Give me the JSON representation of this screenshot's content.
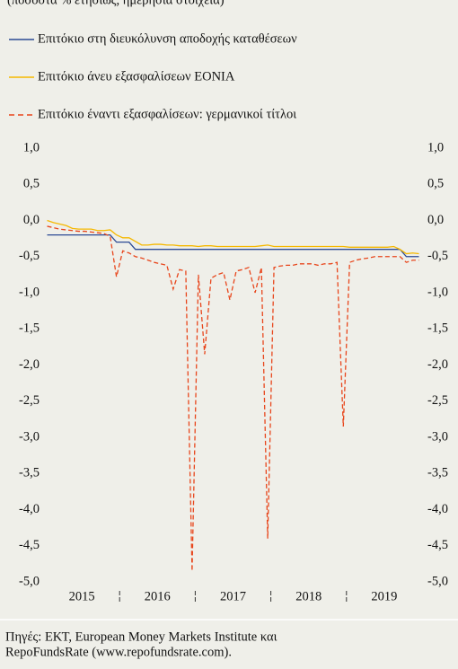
{
  "chart_data": {
    "type": "line",
    "subtitle": "(ποσοστά % ετησίως, ημερήσια στοιχεία)",
    "categories": [
      null,
      null,
      null,
      null,
      null,
      "2015",
      null,
      null,
      null,
      null,
      null,
      null,
      null,
      null,
      null,
      null,
      null,
      "2016",
      null,
      null,
      null,
      null,
      null,
      null,
      null,
      null,
      null,
      null,
      null,
      "2017",
      null,
      null,
      null,
      null,
      null,
      null,
      null,
      null,
      null,
      null,
      null,
      "2018",
      null,
      null,
      null,
      null,
      null,
      null,
      null,
      null,
      null,
      null,
      null,
      "2019",
      null,
      null,
      null,
      null,
      null,
      null
    ],
    "series": [
      {
        "name": "Επιτόκιο στη διευκόλυνση αποδοχής καταθέσεων",
        "color": "#2c4a94",
        "dashed": false,
        "values": [
          -0.2,
          -0.2,
          -0.2,
          -0.2,
          -0.2,
          -0.2,
          -0.2,
          -0.2,
          -0.2,
          -0.2,
          -0.2,
          -0.3,
          -0.3,
          -0.3,
          -0.4,
          -0.4,
          -0.4,
          -0.4,
          -0.4,
          -0.4,
          -0.4,
          -0.4,
          -0.4,
          -0.4,
          -0.4,
          -0.4,
          -0.4,
          -0.4,
          -0.4,
          -0.4,
          -0.4,
          -0.4,
          -0.4,
          -0.4,
          -0.4,
          -0.4,
          -0.4,
          -0.4,
          -0.4,
          -0.4,
          -0.4,
          -0.4,
          -0.4,
          -0.4,
          -0.4,
          -0.4,
          -0.4,
          -0.4,
          -0.4,
          -0.4,
          -0.4,
          -0.4,
          -0.4,
          -0.4,
          -0.4,
          -0.4,
          -0.4,
          -0.5,
          -0.5,
          -0.5
        ]
      },
      {
        "name": "Επιτόκιο άνευ εξασφαλίσεων EONIA",
        "color": "#f5b800",
        "dashed": false,
        "values": [
          0.0,
          -0.03,
          -0.05,
          -0.07,
          -0.11,
          -0.12,
          -0.12,
          -0.12,
          -0.14,
          -0.14,
          -0.13,
          -0.2,
          -0.24,
          -0.24,
          -0.29,
          -0.34,
          -0.34,
          -0.33,
          -0.33,
          -0.34,
          -0.34,
          -0.35,
          -0.35,
          -0.35,
          -0.36,
          -0.35,
          -0.35,
          -0.36,
          -0.36,
          -0.36,
          -0.36,
          -0.36,
          -0.36,
          -0.36,
          -0.35,
          -0.34,
          -0.36,
          -0.36,
          -0.36,
          -0.36,
          -0.36,
          -0.36,
          -0.36,
          -0.36,
          -0.36,
          -0.36,
          -0.36,
          -0.36,
          -0.37,
          -0.37,
          -0.37,
          -0.37,
          -0.37,
          -0.37,
          -0.37,
          -0.36,
          -0.4,
          -0.46,
          -0.45,
          -0.46
        ]
      },
      {
        "name": "Επιτόκιο έναντι εξασφαλίσεων: γερμανικοί τίτλοι",
        "color": "#e8461c",
        "dashed": true,
        "values": [
          -0.08,
          -0.1,
          -0.12,
          -0.13,
          -0.14,
          -0.15,
          -0.15,
          -0.16,
          -0.17,
          -0.18,
          -0.22,
          -0.78,
          -0.42,
          -0.45,
          -0.5,
          -0.52,
          -0.55,
          -0.58,
          -0.6,
          -0.62,
          -0.95,
          -0.68,
          -0.7,
          -4.85,
          -0.75,
          -1.85,
          -0.8,
          -0.75,
          -0.72,
          -1.1,
          -0.7,
          -0.68,
          -0.65,
          -1.0,
          -0.65,
          -4.4,
          -0.65,
          -0.63,
          -0.62,
          -0.62,
          -0.6,
          -0.6,
          -0.6,
          -0.62,
          -0.6,
          -0.6,
          -0.58,
          -2.85,
          -0.58,
          -0.55,
          -0.53,
          -0.52,
          -0.5,
          -0.5,
          -0.5,
          -0.5,
          -0.5,
          -0.58,
          -0.55,
          -0.55
        ]
      }
    ],
    "ylim": [
      -5,
      1
    ],
    "yticks": [
      {
        "value": 1,
        "label": "1,0"
      },
      {
        "value": 0.5,
        "label": "0,5"
      },
      {
        "value": 0,
        "label": "0,0"
      },
      {
        "value": -0.5,
        "label": "-0,5"
      },
      {
        "value": -1,
        "label": "-1,0"
      },
      {
        "value": -1.5,
        "label": "-1,5"
      },
      {
        "value": -2,
        "label": "-2,0"
      },
      {
        "value": -2.5,
        "label": "-2,5"
      },
      {
        "value": -3,
        "label": "-3,0"
      },
      {
        "value": -3.5,
        "label": "-3,5"
      },
      {
        "value": -4,
        "label": "-4,0"
      },
      {
        "value": -4.5,
        "label": "-4,5"
      },
      {
        "value": -5,
        "label": "-5,0"
      }
    ],
    "grid": false,
    "source": [
      "Πηγές: ΕΚΤ, European Money Markets Institute και",
      "RepoFundsRate (www.repofundsrate.com)."
    ]
  }
}
